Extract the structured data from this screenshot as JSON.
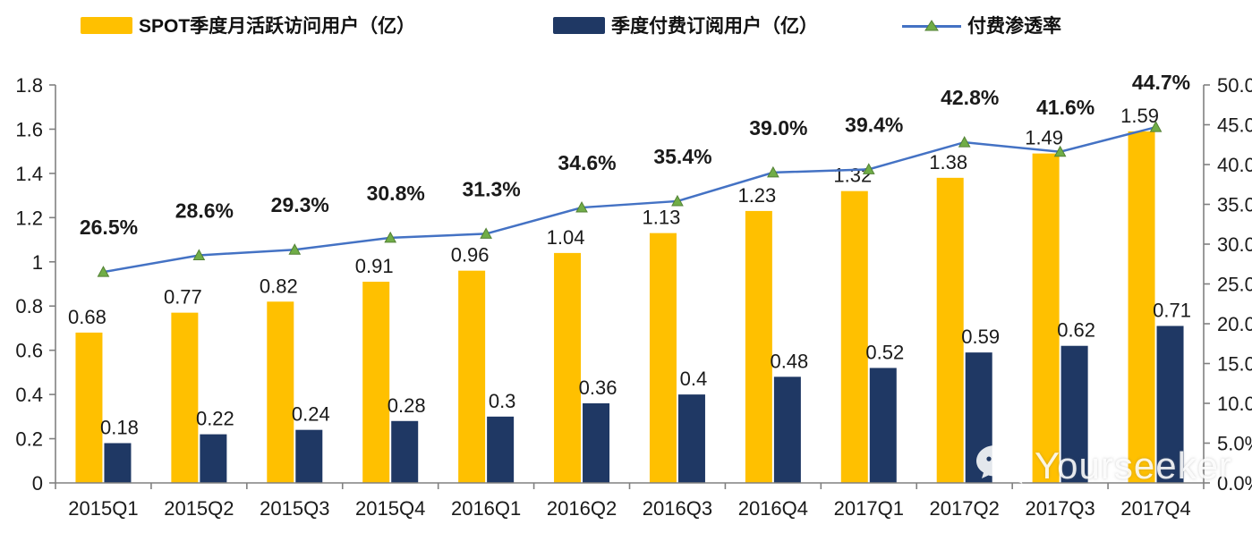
{
  "chart_data": {
    "type": "bar+line",
    "title": "",
    "categories": [
      "2015Q1",
      "2015Q2",
      "2015Q3",
      "2015Q4",
      "2016Q1",
      "2016Q2",
      "2016Q3",
      "2016Q4",
      "2017Q1",
      "2017Q2",
      "2017Q3",
      "2017Q4"
    ],
    "series": [
      {
        "name": "SPOT季度月活跃访问用户（亿）",
        "type": "bar",
        "axis": "left",
        "color": "#FFC000",
        "values": [
          0.68,
          0.77,
          0.82,
          0.91,
          0.96,
          1.04,
          1.13,
          1.23,
          1.32,
          1.38,
          1.49,
          1.59
        ],
        "labels": [
          "0.68",
          "0.77",
          "0.82",
          "0.91",
          "0.96",
          "1.04",
          "1.13",
          "1.23",
          "1.32",
          "1.38",
          "1.49",
          "1.59"
        ]
      },
      {
        "name": "季度付费订阅用户（亿）",
        "type": "bar",
        "axis": "left",
        "color": "#1F3864",
        "values": [
          0.18,
          0.22,
          0.24,
          0.28,
          0.3,
          0.36,
          0.4,
          0.48,
          0.52,
          0.59,
          0.62,
          0.71
        ],
        "labels": [
          "0.18",
          "0.22",
          "0.24",
          "0.28",
          "0.3",
          "0.36",
          "0.4",
          "0.48",
          "0.52",
          "0.59",
          "0.62",
          "0.71"
        ]
      },
      {
        "name": "付费渗透率",
        "type": "line",
        "axis": "right",
        "color": "#4472C4",
        "marker_color": "#70AD47",
        "marker_edge_color": "#538135",
        "values": [
          26.5,
          28.6,
          29.3,
          30.8,
          31.3,
          34.6,
          35.4,
          39.0,
          39.4,
          42.8,
          41.6,
          44.7
        ],
        "labels": [
          "26.5%",
          "28.6%",
          "29.3%",
          "30.8%",
          "31.3%",
          "34.6%",
          "35.4%",
          "39.0%",
          "39.4%",
          "42.8%",
          "41.6%",
          "44.7%"
        ]
      }
    ],
    "left_axis": {
      "min": 0,
      "max": 1.8,
      "step": 0.2,
      "tick_labels": [
        "0",
        "0.2",
        "0.4",
        "0.6",
        "0.8",
        "1",
        "1.2",
        "1.4",
        "1.6",
        "1.8"
      ]
    },
    "right_axis": {
      "min": 0,
      "max": 50,
      "step": 5,
      "tick_labels": [
        "0.0%",
        "5.0%",
        "10.0%",
        "15.0%",
        "20.0%",
        "25.0%",
        "30.0%",
        "35.0%",
        "40.0%",
        "45.0%",
        "50.0%"
      ]
    },
    "grid": false,
    "legend_position": "top"
  },
  "watermark": {
    "text": "Yourseeker",
    "icon": "wechat-icon"
  }
}
